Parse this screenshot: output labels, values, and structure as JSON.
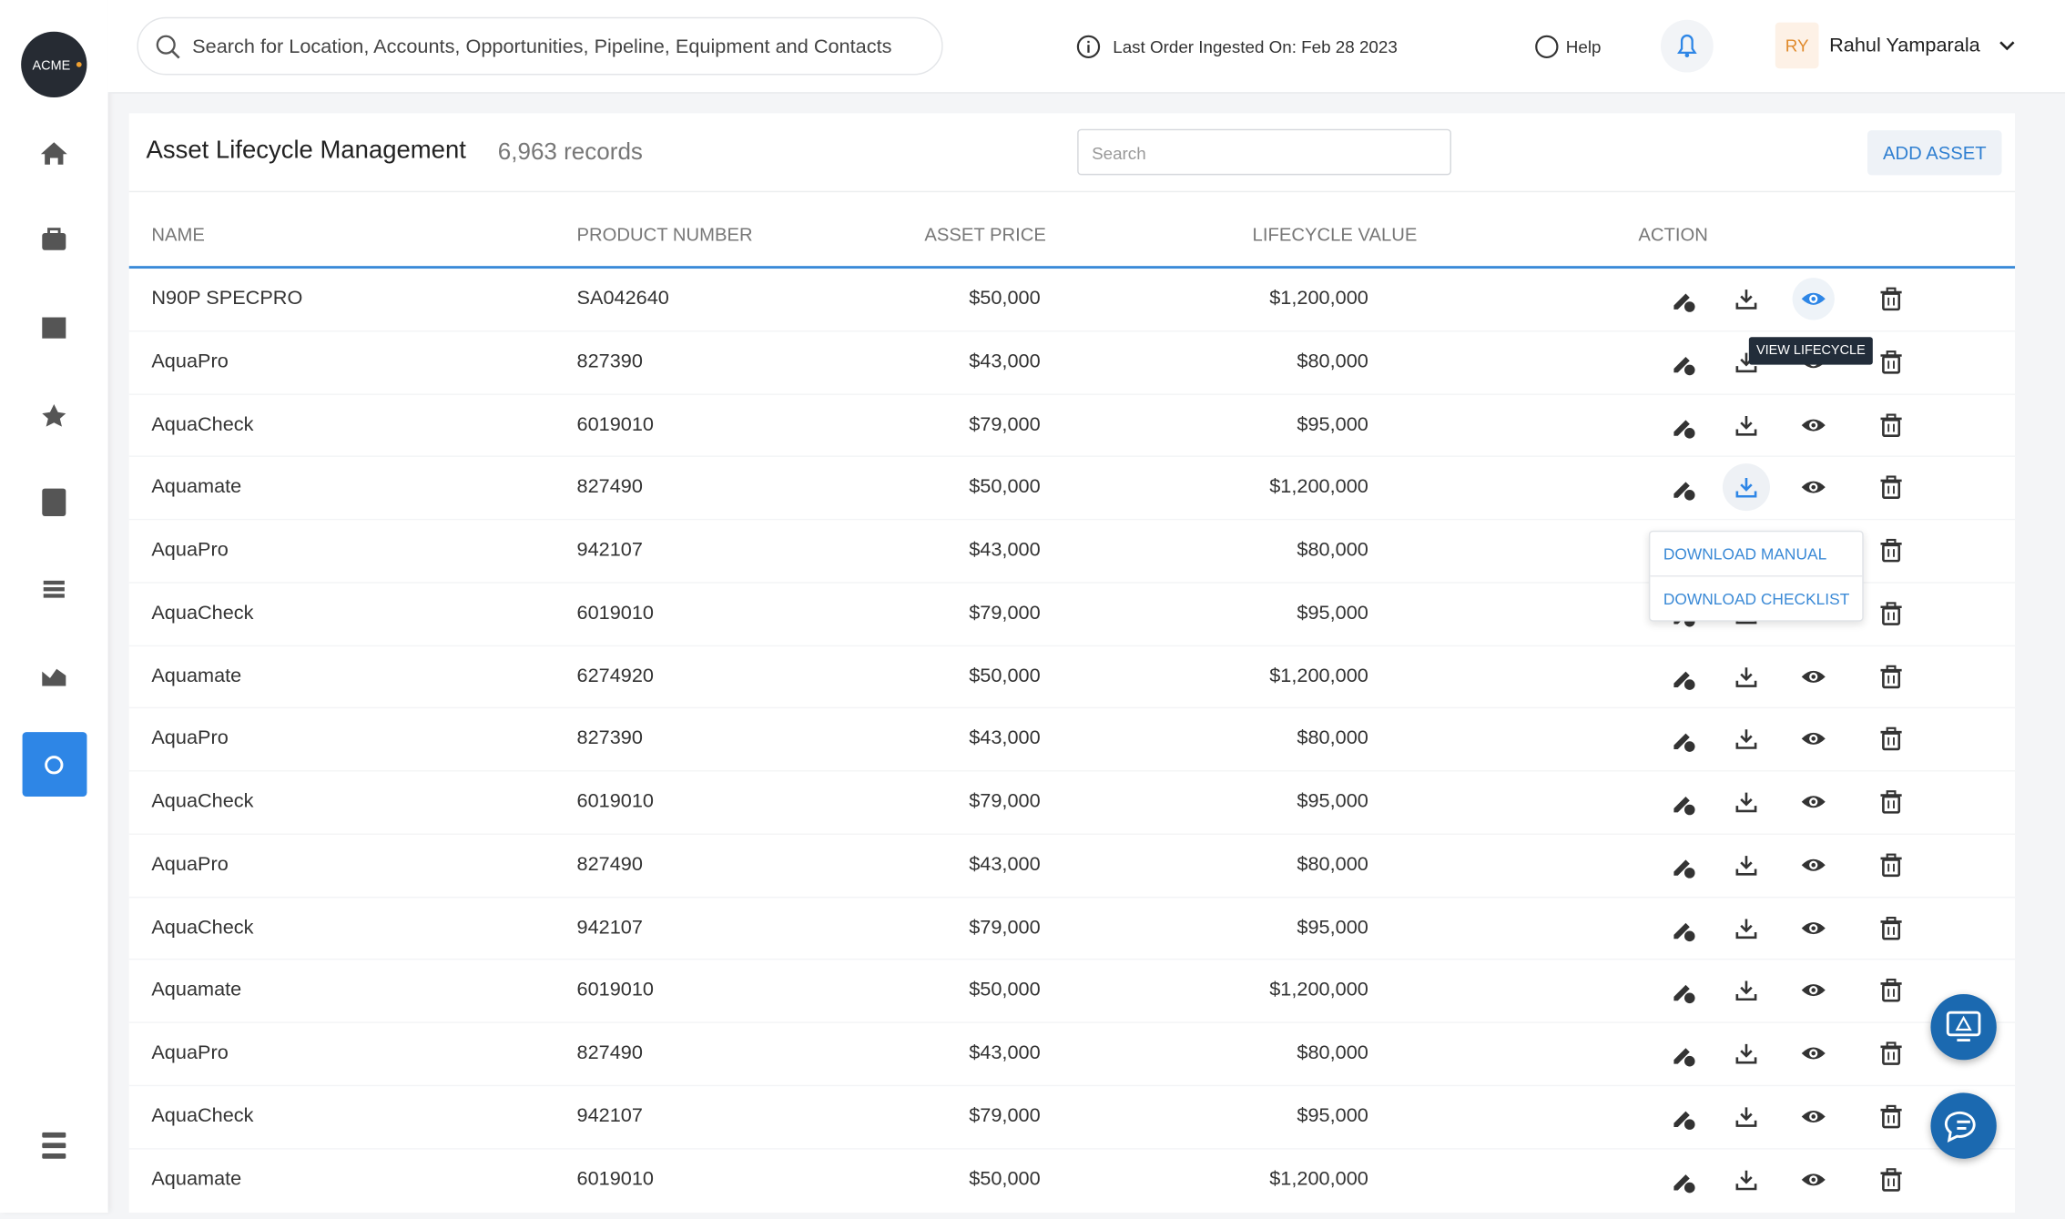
{
  "header": {
    "search_placeholder": "Search for Location, Accounts, Opportunities, Pipeline, Equipment and Contacts",
    "last_order": "Last Order Ingested On: Feb 28 2023",
    "help": "Help",
    "user_initials": "RY",
    "user_name": "Rahul Yamparala",
    "logo": "ACME"
  },
  "page": {
    "title": "Asset Lifecycle Management",
    "records": "6,963 records",
    "search_placeholder": "Search",
    "add_button": "ADD ASSET"
  },
  "table": {
    "columns": [
      "NAME",
      "PRODUCT NUMBER",
      "ASSET PRICE",
      "LIFECYCLE VALUE",
      "ACTION"
    ],
    "rows": [
      [
        "N90P SPECPRO",
        "SA042640",
        "$50,000",
        "$1,200,000"
      ],
      [
        "AquaPro",
        "827390",
        "$43,000",
        "$80,000"
      ],
      [
        "AquaCheck",
        "6019010",
        "$79,000",
        "$95,000"
      ],
      [
        "Aquamate",
        "827490",
        "$50,000",
        "$1,200,000"
      ],
      [
        "AquaPro",
        "942107",
        "$43,000",
        "$80,000"
      ],
      [
        "AquaCheck",
        "6019010",
        "$79,000",
        "$95,000"
      ],
      [
        "Aquamate",
        "6274920",
        "$50,000",
        "$1,200,000"
      ],
      [
        "AquaPro",
        "827390",
        "$43,000",
        "$80,000"
      ],
      [
        "AquaCheck",
        "6019010",
        "$79,000",
        "$95,000"
      ],
      [
        "AquaPro",
        "827490",
        "$43,000",
        "$80,000"
      ],
      [
        "AquaCheck",
        "942107",
        "$79,000",
        "$95,000"
      ],
      [
        "Aquamate",
        "6019010",
        "$50,000",
        "$1,200,000"
      ],
      [
        "AquaPro",
        "827490",
        "$43,000",
        "$80,000"
      ],
      [
        "AquaCheck",
        "942107",
        "$79,000",
        "$95,000"
      ],
      [
        "Aquamate",
        "6019010",
        "$50,000",
        "$1,200,000"
      ]
    ]
  },
  "tooltip": "VIEW LIFECYCLE",
  "download_menu": [
    "DOWNLOAD MANUAL",
    "DOWNLOAD CHECKLIST"
  ]
}
